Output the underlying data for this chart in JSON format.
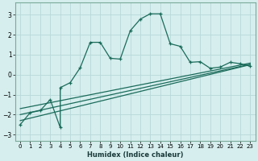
{
  "xlabel": "Humidex (Indice chaleur)",
  "background_color": "#d6eeee",
  "grid_color": "#b8d8d8",
  "line_color": "#1a6b5a",
  "xlim": [
    -0.5,
    23.5
  ],
  "ylim": [
    -3.3,
    3.6
  ],
  "x_ticks": [
    0,
    1,
    2,
    3,
    4,
    5,
    6,
    7,
    8,
    9,
    10,
    11,
    12,
    13,
    14,
    15,
    16,
    17,
    18,
    19,
    20,
    21,
    22,
    23
  ],
  "y_ticks": [
    -3,
    -2,
    -1,
    0,
    1,
    2,
    3
  ],
  "series1_x": [
    0,
    1,
    2,
    3,
    4,
    4,
    5,
    6,
    7,
    8,
    9,
    10,
    11,
    12,
    13,
    14,
    15,
    16,
    17,
    18,
    19,
    20,
    21,
    22,
    23
  ],
  "series1_y": [
    -2.5,
    -1.9,
    -1.8,
    -1.25,
    -2.65,
    -0.65,
    -0.4,
    0.35,
    1.62,
    1.62,
    0.82,
    0.78,
    2.2,
    2.78,
    3.05,
    3.05,
    1.55,
    1.42,
    0.62,
    0.65,
    0.32,
    0.38,
    0.62,
    0.55,
    0.42
  ],
  "series2_x": [
    0,
    23
  ],
  "series2_y": [
    -2.3,
    0.5
  ],
  "series3_x": [
    0,
    23
  ],
  "series3_y": [
    -2.0,
    0.52
  ],
  "series4_x": [
    0,
    23
  ],
  "series4_y": [
    -1.7,
    0.58
  ]
}
